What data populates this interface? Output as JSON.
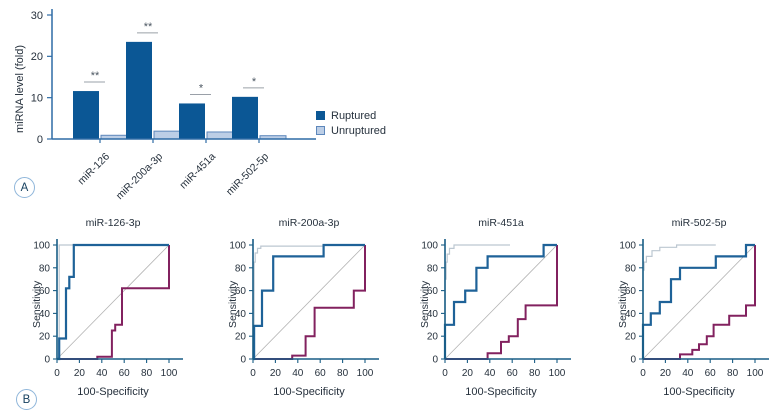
{
  "figure": {
    "panel_a_label": "A",
    "panel_b_label": "B"
  },
  "chart_data": [
    {
      "type": "bar",
      "panel": "A",
      "title": "",
      "categories": [
        "miR-126",
        "miR-200a-3p",
        "miR-451a",
        "miR-502-5p"
      ],
      "series": [
        {
          "name": "Ruptured",
          "color": "#0b5795",
          "values": [
            11.6,
            23.5,
            8.6,
            10.2
          ]
        },
        {
          "name": "Unruptured",
          "color": "#bccee6",
          "border": "#5d87bb",
          "values": [
            0.9,
            1.9,
            1.7,
            0.8
          ]
        }
      ],
      "significance": [
        "**",
        "**",
        "*",
        "*"
      ],
      "xlabel": "",
      "ylabel": "miRNA level (fold)",
      "ylim": [
        0,
        30
      ],
      "yticks": [
        0,
        10,
        20,
        30
      ],
      "grid": false,
      "legend_position": "right"
    },
    {
      "type": "line",
      "panel": "B",
      "title": "miR-126-3p",
      "xlabel": "100-Specificity",
      "ylabel": "Sensitivity",
      "xlim": [
        0,
        100
      ],
      "ylim": [
        0,
        100
      ],
      "xticks": [
        0,
        20,
        40,
        60,
        80,
        100
      ],
      "yticks": [
        0,
        20,
        40,
        60,
        80,
        100
      ],
      "grid": false,
      "series": [
        {
          "name": "blue-roc-curve",
          "color": "#1e6298",
          "points": [
            [
              0,
              0
            ],
            [
              2,
              0
            ],
            [
              2,
              18
            ],
            [
              8,
              18
            ],
            [
              8,
              62
            ],
            [
              11,
              62
            ],
            [
              11,
              72
            ],
            [
              15,
              72
            ],
            [
              15,
              100
            ],
            [
              100,
              100
            ]
          ]
        },
        {
          "name": "maroon-roc-curve",
          "color": "#82215f",
          "points": [
            [
              0,
              0
            ],
            [
              36,
              0
            ],
            [
              36,
              2
            ],
            [
              49,
              2
            ],
            [
              49,
              25
            ],
            [
              52,
              25
            ],
            [
              52,
              30
            ],
            [
              58,
              30
            ],
            [
              58,
              62
            ],
            [
              100,
              62
            ],
            [
              100,
              100
            ]
          ]
        },
        {
          "name": "gray-roc-curve",
          "color": "#bcc7d1",
          "points": [
            [
              0,
              0
            ],
            [
              2,
              0
            ],
            [
              2,
              100
            ],
            [
              100,
              100
            ]
          ]
        },
        {
          "name": "diagonal-reference",
          "color": "#b3b3b3",
          "points": [
            [
              0,
              0
            ],
            [
              100,
              100
            ]
          ]
        }
      ]
    },
    {
      "type": "line",
      "panel": "B",
      "title": "miR-200a-3p",
      "xlabel": "100-Specificity",
      "ylabel": "Sensitivity",
      "xlim": [
        0,
        100
      ],
      "ylim": [
        0,
        100
      ],
      "xticks": [
        0,
        20,
        40,
        60,
        80,
        100
      ],
      "yticks": [
        0,
        20,
        40,
        60,
        80,
        100
      ],
      "grid": false,
      "series": [
        {
          "name": "blue-roc-curve",
          "color": "#1e6298",
          "points": [
            [
              0,
              0
            ],
            [
              1,
              0
            ],
            [
              1,
              29
            ],
            [
              8,
              29
            ],
            [
              8,
              60
            ],
            [
              18,
              60
            ],
            [
              18,
              90
            ],
            [
              63,
              90
            ],
            [
              63,
              100
            ],
            [
              100,
              100
            ]
          ]
        },
        {
          "name": "maroon-roc-curve",
          "color": "#82215f",
          "points": [
            [
              0,
              0
            ],
            [
              35,
              0
            ],
            [
              35,
              3
            ],
            [
              47,
              3
            ],
            [
              47,
              20
            ],
            [
              55,
              20
            ],
            [
              55,
              45
            ],
            [
              90,
              45
            ],
            [
              90,
              60
            ],
            [
              100,
              60
            ],
            [
              100,
              100
            ]
          ]
        },
        {
          "name": "gray-roc-curve",
          "color": "#bcc7d1",
          "points": [
            [
              0,
              0
            ],
            [
              1,
              0
            ],
            [
              1,
              85
            ],
            [
              2,
              85
            ],
            [
              2,
              93
            ],
            [
              4,
              93
            ],
            [
              4,
              97
            ],
            [
              7,
              97
            ],
            [
              7,
              99
            ],
            [
              62,
              99
            ],
            [
              63,
              100
            ]
          ]
        },
        {
          "name": "diagonal-reference",
          "color": "#b3b3b3",
          "points": [
            [
              0,
              0
            ],
            [
              100,
              100
            ]
          ]
        }
      ]
    },
    {
      "type": "line",
      "panel": "B",
      "title": "miR-451a",
      "xlabel": "100-Specificity",
      "ylabel": "Sensitivity",
      "xlim": [
        0,
        100
      ],
      "ylim": [
        0,
        100
      ],
      "xticks": [
        0,
        20,
        40,
        60,
        80,
        100
      ],
      "yticks": [
        0,
        20,
        40,
        60,
        80,
        100
      ],
      "grid": false,
      "series": [
        {
          "name": "blue-roc-curve",
          "color": "#1e6298",
          "points": [
            [
              0,
              0
            ],
            [
              0,
              30
            ],
            [
              8,
              30
            ],
            [
              8,
              50
            ],
            [
              18,
              50
            ],
            [
              18,
              60
            ],
            [
              28,
              60
            ],
            [
              28,
              80
            ],
            [
              38,
              80
            ],
            [
              38,
              90
            ],
            [
              88,
              90
            ],
            [
              88,
              100
            ],
            [
              100,
              100
            ]
          ]
        },
        {
          "name": "maroon-roc-curve",
          "color": "#82215f",
          "points": [
            [
              0,
              0
            ],
            [
              38,
              0
            ],
            [
              38,
              5
            ],
            [
              50,
              5
            ],
            [
              50,
              15
            ],
            [
              57,
              15
            ],
            [
              57,
              20
            ],
            [
              65,
              20
            ],
            [
              65,
              35
            ],
            [
              72,
              35
            ],
            [
              72,
              47
            ],
            [
              100,
              47
            ],
            [
              100,
              100
            ]
          ]
        },
        {
          "name": "gray-roc-curve",
          "color": "#bcc7d1",
          "points": [
            [
              0,
              0
            ],
            [
              0,
              70
            ],
            [
              1,
              70
            ],
            [
              1,
              85
            ],
            [
              2,
              85
            ],
            [
              2,
              92
            ],
            [
              4,
              92
            ],
            [
              4,
              97
            ],
            [
              8,
              97
            ],
            [
              8,
              100
            ],
            [
              58,
              100
            ]
          ]
        },
        {
          "name": "diagonal-reference",
          "color": "#b3b3b3",
          "points": [
            [
              0,
              0
            ],
            [
              100,
              100
            ]
          ]
        }
      ]
    },
    {
      "type": "line",
      "panel": "B",
      "title": "miR-502-5p",
      "xlabel": "100-Specificity",
      "ylabel": "Sensitivity",
      "xlim": [
        0,
        100
      ],
      "ylim": [
        0,
        100
      ],
      "xticks": [
        0,
        20,
        40,
        60,
        80,
        100
      ],
      "yticks": [
        0,
        20,
        40,
        60,
        80,
        100
      ],
      "grid": false,
      "series": [
        {
          "name": "blue-roc-curve",
          "color": "#1e6298",
          "points": [
            [
              0,
              0
            ],
            [
              0,
              30
            ],
            [
              7,
              30
            ],
            [
              7,
              40
            ],
            [
              15,
              40
            ],
            [
              15,
              50
            ],
            [
              25,
              50
            ],
            [
              25,
              70
            ],
            [
              33,
              70
            ],
            [
              33,
              80
            ],
            [
              65,
              80
            ],
            [
              65,
              90
            ],
            [
              92,
              90
            ],
            [
              92,
              100
            ],
            [
              100,
              100
            ]
          ]
        },
        {
          "name": "maroon-roc-curve",
          "color": "#82215f",
          "points": [
            [
              0,
              0
            ],
            [
              33,
              0
            ],
            [
              33,
              4
            ],
            [
              44,
              4
            ],
            [
              44,
              8
            ],
            [
              50,
              8
            ],
            [
              50,
              13
            ],
            [
              57,
              13
            ],
            [
              57,
              20
            ],
            [
              63,
              20
            ],
            [
              63,
              30
            ],
            [
              77,
              30
            ],
            [
              77,
              38
            ],
            [
              92,
              38
            ],
            [
              92,
              47
            ],
            [
              100,
              47
            ],
            [
              100,
              100
            ]
          ]
        },
        {
          "name": "gray-roc-curve",
          "color": "#bcc7d1",
          "points": [
            [
              0,
              0
            ],
            [
              0,
              78
            ],
            [
              1,
              78
            ],
            [
              1,
              85
            ],
            [
              3,
              85
            ],
            [
              3,
              90
            ],
            [
              8,
              90
            ],
            [
              8,
              95
            ],
            [
              15,
              95
            ],
            [
              15,
              98
            ],
            [
              30,
              98
            ],
            [
              30,
              100
            ],
            [
              65,
              100
            ]
          ]
        },
        {
          "name": "diagonal-reference",
          "color": "#b3b3b3",
          "points": [
            [
              0,
              0
            ],
            [
              100,
              100
            ]
          ]
        }
      ]
    }
  ]
}
